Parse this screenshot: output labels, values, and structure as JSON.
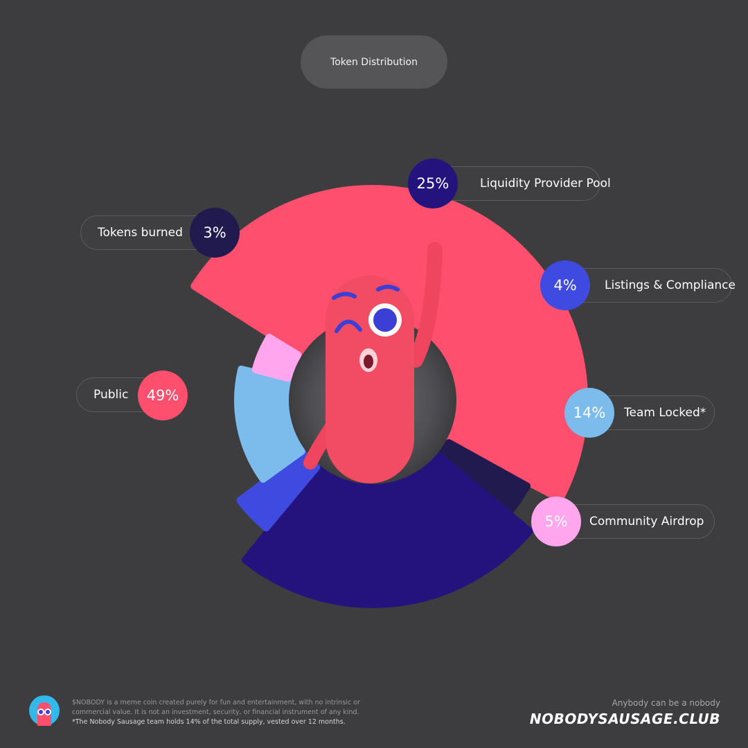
{
  "header": {
    "title": "Token Distribution"
  },
  "chart_data": {
    "type": "pie",
    "title": "Token Distribution",
    "slices": [
      {
        "label": "Public",
        "value": 49,
        "display": "49%",
        "color": "#ff4f6e"
      },
      {
        "label": "Tokens burned",
        "value": 3,
        "display": "3%",
        "color": "#201a4f"
      },
      {
        "label": "Liquidity Provider Pool",
        "value": 25,
        "display": "25%",
        "color": "#24137c"
      },
      {
        "label": "Listings & Compliance",
        "value": 4,
        "display": "4%",
        "color": "#3f4be0"
      },
      {
        "label": "Team Locked*",
        "value": 14,
        "display": "14%",
        "color": "#7cbcec"
      },
      {
        "label": "Community Airdrop",
        "value": 5,
        "display": "5%",
        "color": "#ffa6ee"
      }
    ]
  },
  "footer": {
    "disclaimer": "$NOBODY is a meme coin created purely for fun and entertainment, with no intrinsic or commercial value. It is not an investment, security, or financial instrument of any kind.",
    "note": "*The Nobody Sausage team holds 14% of the total supply, vested over 12 months.",
    "tagline": "Anybody can be a nobody",
    "site": "NOBODYSAUSAGE.CLUB"
  },
  "icons": {
    "mascot": "sausage-mascot",
    "logo": "nobody-logo-icon"
  }
}
